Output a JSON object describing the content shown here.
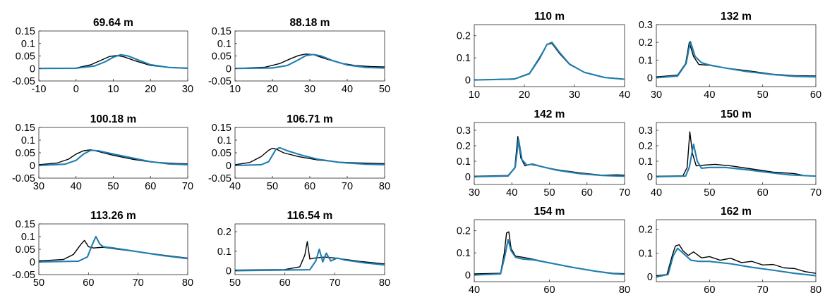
{
  "colors": {
    "measured": "#000000",
    "model": "#1f7fb0",
    "axis": "#262626"
  },
  "chart_data": [
    {
      "type": "line",
      "title": "69.64 m",
      "xlim": [
        -10,
        30
      ],
      "ylim": [
        -0.05,
        0.15
      ],
      "xticks": [
        "-10",
        "0",
        "10",
        "20",
        "30"
      ],
      "yticks": [
        "0.15",
        "0.1",
        "0.05",
        "0",
        "-0.05"
      ],
      "series": [
        {
          "color": "#000000",
          "x": [
            -10,
            0,
            4,
            7,
            9,
            11,
            13,
            16,
            20,
            25,
            30
          ],
          "y": [
            0,
            0.002,
            0.015,
            0.035,
            0.048,
            0.052,
            0.046,
            0.03,
            0.012,
            0.004,
            0.002
          ]
        },
        {
          "color": "#1f7fb0",
          "x": [
            -10,
            0,
            5,
            8,
            10,
            12,
            14,
            17,
            20,
            25,
            30
          ],
          "y": [
            0,
            0.001,
            0.01,
            0.028,
            0.045,
            0.055,
            0.05,
            0.032,
            0.015,
            0.004,
            0.001
          ]
        }
      ]
    },
    {
      "type": "line",
      "title": "88.18 m",
      "xlim": [
        10,
        50
      ],
      "ylim": [
        -0.05,
        0.15
      ],
      "xticks": [
        "10",
        "20",
        "30",
        "40",
        "50"
      ],
      "yticks": [
        "0.15",
        "0.1",
        "0.05",
        "0",
        "-0.05"
      ],
      "series": [
        {
          "color": "#000000",
          "x": [
            10,
            18,
            22,
            25,
            27,
            29,
            31,
            34,
            38,
            42,
            46,
            50
          ],
          "y": [
            0,
            0.005,
            0.02,
            0.04,
            0.052,
            0.058,
            0.055,
            0.04,
            0.022,
            0.012,
            0.008,
            0.006
          ]
        },
        {
          "color": "#1f7fb0",
          "x": [
            10,
            20,
            24,
            27,
            29,
            31,
            33,
            36,
            40,
            45,
            50
          ],
          "y": [
            0,
            0.002,
            0.012,
            0.035,
            0.052,
            0.056,
            0.05,
            0.032,
            0.014,
            0.004,
            0.002
          ]
        }
      ]
    },
    {
      "type": "line",
      "title": "100.18 m",
      "xlim": [
        30,
        70
      ],
      "ylim": [
        -0.05,
        0.15
      ],
      "xticks": [
        "30",
        "40",
        "50",
        "60",
        "70"
      ],
      "yticks": [
        "0.15",
        "0.1",
        "0.05",
        "0",
        "-0.05"
      ],
      "series": [
        {
          "color": "#000000",
          "x": [
            30,
            35,
            38,
            40,
            42,
            44,
            46,
            50,
            55,
            60,
            65,
            70
          ],
          "y": [
            0.003,
            0.01,
            0.025,
            0.045,
            0.058,
            0.062,
            0.055,
            0.04,
            0.025,
            0.014,
            0.009,
            0.006
          ]
        },
        {
          "color": "#1f7fb0",
          "x": [
            30,
            37,
            40,
            42,
            44,
            46,
            50,
            55,
            60,
            65,
            70
          ],
          "y": [
            0,
            0.005,
            0.02,
            0.045,
            0.06,
            0.058,
            0.045,
            0.03,
            0.015,
            0.006,
            0.003
          ]
        }
      ]
    },
    {
      "type": "line",
      "title": "106.71 m",
      "xlim": [
        40,
        80
      ],
      "ylim": [
        -0.05,
        0.15
      ],
      "xticks": [
        "40",
        "50",
        "60",
        "70",
        "80"
      ],
      "yticks": [
        "0.15",
        "0.1",
        "0.05",
        "0",
        "-0.05"
      ],
      "series": [
        {
          "color": "#000000",
          "x": [
            40,
            44,
            47,
            49,
            50,
            51,
            53,
            57,
            62,
            68,
            75,
            80
          ],
          "y": [
            0.003,
            0.012,
            0.035,
            0.06,
            0.068,
            0.065,
            0.05,
            0.035,
            0.022,
            0.013,
            0.009,
            0.007
          ]
        },
        {
          "color": "#1f7fb0",
          "x": [
            40,
            47,
            49,
            50,
            51,
            52,
            54,
            58,
            62,
            68,
            75,
            80
          ],
          "y": [
            0,
            0.003,
            0.015,
            0.04,
            0.065,
            0.07,
            0.058,
            0.04,
            0.025,
            0.012,
            0.005,
            0.003
          ]
        }
      ]
    },
    {
      "type": "line",
      "title": "113.26 m",
      "xlim": [
        50,
        80
      ],
      "ylim": [
        -0.05,
        0.15
      ],
      "xticks": [
        "50",
        "60",
        "70",
        "80"
      ],
      "yticks": [
        "0.15",
        "0.1",
        "0.05",
        "0",
        "-0.05"
      ],
      "series": [
        {
          "color": "#000000",
          "x": [
            50,
            55,
            57,
            58.5,
            59.2,
            60,
            61,
            63,
            66,
            70,
            75,
            80
          ],
          "y": [
            0.004,
            0.01,
            0.03,
            0.07,
            0.085,
            0.06,
            0.055,
            0.058,
            0.05,
            0.04,
            0.027,
            0.015
          ]
        },
        {
          "color": "#1f7fb0",
          "x": [
            50,
            58,
            59.8,
            60.8,
            61.5,
            62.3,
            63,
            65,
            70,
            75,
            80
          ],
          "y": [
            0,
            0.003,
            0.02,
            0.07,
            0.1,
            0.07,
            0.06,
            0.055,
            0.04,
            0.025,
            0.013
          ]
        }
      ]
    },
    {
      "type": "line",
      "title": "116.54 m",
      "xlim": [
        50,
        80
      ],
      "ylim": [
        -0.02,
        0.24
      ],
      "xticks": [
        "50",
        "60",
        "70",
        "80"
      ],
      "yticks": [
        "0.2",
        "0.1",
        "0"
      ],
      "series": [
        {
          "color": "#000000",
          "x": [
            50,
            60,
            63,
            64,
            64.5,
            65,
            66,
            68,
            70,
            75,
            80
          ],
          "y": [
            0.003,
            0.006,
            0.02,
            0.08,
            0.15,
            0.06,
            0.065,
            0.07,
            0.065,
            0.048,
            0.035
          ]
        },
        {
          "color": "#1f7fb0",
          "x": [
            50,
            65,
            66.2,
            66.9,
            67.6,
            68.3,
            69.2,
            70.5,
            72,
            76,
            80
          ],
          "y": [
            0,
            0.005,
            0.05,
            0.11,
            0.045,
            0.09,
            0.05,
            0.065,
            0.055,
            0.04,
            0.03
          ]
        }
      ]
    },
    {
      "type": "line",
      "title": "110 m",
      "xlim": [
        10,
        40
      ],
      "ylim": [
        -0.03,
        0.25
      ],
      "xticks": [
        "10",
        "20",
        "30",
        "40"
      ],
      "yticks": [
        "0.2",
        "0.1",
        "0"
      ],
      "series": [
        {
          "color": "#000000",
          "x": [
            10,
            18,
            21,
            23,
            24.5,
            25.5,
            27,
            29,
            32,
            36,
            40
          ],
          "y": [
            0,
            0.005,
            0.03,
            0.1,
            0.16,
            0.165,
            0.12,
            0.07,
            0.035,
            0.012,
            0.004
          ]
        },
        {
          "color": "#1f7fb0",
          "x": [
            10,
            18,
            21,
            23,
            24.5,
            25.5,
            27,
            29,
            32,
            36,
            40
          ],
          "y": [
            0,
            0.004,
            0.028,
            0.095,
            0.16,
            0.17,
            0.125,
            0.072,
            0.034,
            0.011,
            0.003
          ]
        }
      ]
    },
    {
      "type": "line",
      "title": "132 m",
      "xlim": [
        30,
        60
      ],
      "ylim": [
        -0.05,
        0.3
      ],
      "xticks": [
        "30",
        "40",
        "50",
        "60"
      ],
      "yticks": [
        "0.3",
        "0.2",
        "0.1",
        "0"
      ],
      "series": [
        {
          "color": "#000000",
          "x": [
            30,
            34,
            35.5,
            36.2,
            37,
            38,
            40,
            43,
            47,
            52,
            56,
            60
          ],
          "y": [
            0.005,
            0.015,
            0.08,
            0.2,
            0.12,
            0.075,
            0.07,
            0.055,
            0.04,
            0.02,
            0.012,
            0.01
          ]
        },
        {
          "color": "#1f7fb0",
          "x": [
            30,
            34,
            35.6,
            36.4,
            37.3,
            38.5,
            40,
            43,
            47,
            52,
            56,
            60
          ],
          "y": [
            0,
            0.01,
            0.08,
            0.205,
            0.12,
            0.085,
            0.072,
            0.055,
            0.035,
            0.018,
            0.008,
            0.005
          ]
        }
      ]
    },
    {
      "type": "line",
      "title": "142 m",
      "xlim": [
        30,
        70
      ],
      "ylim": [
        -0.05,
        0.35
      ],
      "xticks": [
        "30",
        "40",
        "50",
        "60",
        "70"
      ],
      "yticks": [
        "0.3",
        "0.2",
        "0.1",
        "0"
      ],
      "series": [
        {
          "color": "#000000",
          "x": [
            30,
            39,
            40.8,
            41.6,
            42.4,
            43.5,
            45,
            48,
            52,
            58,
            64,
            68,
            70
          ],
          "y": [
            0.003,
            0.008,
            0.06,
            0.26,
            0.12,
            0.07,
            0.08,
            0.065,
            0.045,
            0.025,
            0.01,
            0.012,
            0.01
          ]
        },
        {
          "color": "#1f7fb0",
          "x": [
            30,
            39,
            40.9,
            41.8,
            42.7,
            44,
            45.5,
            48,
            52,
            58,
            64,
            70
          ],
          "y": [
            0,
            0.005,
            0.06,
            0.24,
            0.11,
            0.075,
            0.082,
            0.065,
            0.042,
            0.02,
            0.008,
            0.003
          ]
        }
      ]
    },
    {
      "type": "line",
      "title": "150 m",
      "xlim": [
        40,
        70
      ],
      "ylim": [
        -0.05,
        0.35
      ],
      "xticks": [
        "40",
        "50",
        "60",
        "70"
      ],
      "yticks": [
        "0.3",
        "0.2",
        "0.1",
        "0"
      ],
      "series": [
        {
          "color": "#000000",
          "x": [
            40,
            45,
            45.8,
            46.3,
            46.8,
            47.5,
            49,
            51,
            54,
            58,
            62,
            66,
            67.5
          ],
          "y": [
            0.003,
            0.006,
            0.06,
            0.29,
            0.15,
            0.07,
            0.075,
            0.08,
            0.07,
            0.05,
            0.03,
            0.02,
            0.01
          ]
        },
        {
          "color": "#1f7fb0",
          "x": [
            40,
            45.5,
            46.2,
            47,
            47.7,
            48.5,
            50,
            53,
            57,
            61,
            65,
            70
          ],
          "y": [
            0,
            0.004,
            0.06,
            0.21,
            0.1,
            0.055,
            0.06,
            0.06,
            0.045,
            0.028,
            0.012,
            0.004
          ]
        }
      ]
    },
    {
      "type": "line",
      "title": "154 m",
      "xlim": [
        40,
        80
      ],
      "ylim": [
        -0.03,
        0.25
      ],
      "xticks": [
        "40",
        "60",
        "80"
      ],
      "yticks": [
        "0.2",
        "0.1",
        "0"
      ],
      "series": [
        {
          "color": "#000000",
          "x": [
            40,
            47,
            48,
            48.6,
            49.2,
            49.8,
            51,
            53,
            56,
            60,
            66,
            72,
            77,
            80
          ],
          "y": [
            0.005,
            0.008,
            0.1,
            0.19,
            0.195,
            0.12,
            0.085,
            0.08,
            0.07,
            0.055,
            0.035,
            0.018,
            0.008,
            0.006
          ]
        },
        {
          "color": "#1f7fb0",
          "x": [
            40,
            47,
            48.2,
            49,
            49.8,
            51,
            53,
            56,
            60,
            66,
            72,
            77,
            80
          ],
          "y": [
            0,
            0.005,
            0.09,
            0.16,
            0.11,
            0.08,
            0.072,
            0.068,
            0.055,
            0.035,
            0.018,
            0.006,
            0.003
          ]
        }
      ]
    },
    {
      "type": "line",
      "title": "162 m",
      "xlim": [
        50,
        80
      ],
      "ylim": [
        -0.02,
        0.24
      ],
      "xticks": [
        "60",
        "70",
        "80"
      ],
      "yticks": [
        "0.2",
        "0.1",
        "0"
      ],
      "series": [
        {
          "color": "#000000",
          "x": [
            50,
            52,
            53,
            53.6,
            54.3,
            55,
            56,
            57,
            58.5,
            60,
            62,
            64,
            66,
            68,
            70,
            72,
            74,
            76,
            78,
            80
          ],
          "y": [
            0.005,
            0.01,
            0.09,
            0.13,
            0.135,
            0.11,
            0.09,
            0.105,
            0.08,
            0.085,
            0.07,
            0.078,
            0.06,
            0.065,
            0.05,
            0.052,
            0.038,
            0.035,
            0.022,
            0.015
          ]
        },
        {
          "color": "#1f7fb0",
          "x": [
            50,
            52.2,
            53.2,
            54,
            55,
            56.5,
            58,
            60,
            64,
            68,
            72,
            76,
            80
          ],
          "y": [
            0,
            0.01,
            0.09,
            0.12,
            0.1,
            0.07,
            0.065,
            0.065,
            0.055,
            0.04,
            0.028,
            0.015,
            0.005
          ]
        }
      ]
    }
  ]
}
